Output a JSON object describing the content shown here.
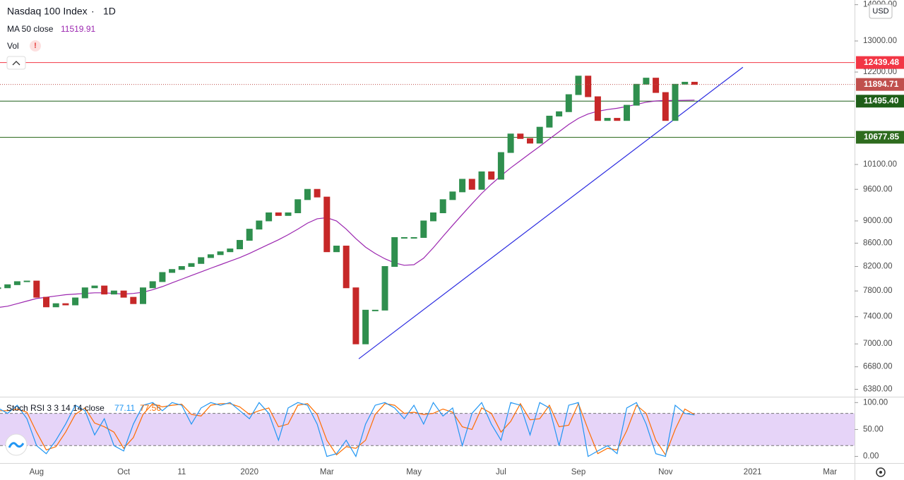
{
  "header": {
    "title": "Nasdaq 100 Index",
    "separator": "·",
    "interval": "1D",
    "currency": "USD",
    "vol_label": "Vol",
    "vol_alert": "!"
  },
  "chart_data": [
    {
      "type": "candlestick",
      "log_scale": true,
      "categories": [
        null,
        null,
        null,
        null,
        "Aug",
        null,
        null,
        null,
        null,
        null,
        null,
        null,
        null,
        "Oct",
        null,
        null,
        null,
        null,
        null,
        "11",
        null,
        null,
        null,
        null,
        null,
        null,
        "2020",
        null,
        null,
        null,
        null,
        null,
        null,
        null,
        "Mar",
        null,
        null,
        null,
        null,
        null,
        null,
        null,
        null,
        "May",
        null,
        null,
        null,
        null,
        null,
        null,
        null,
        null,
        "Jul",
        null,
        null,
        null,
        null,
        null,
        null,
        null,
        "Sep",
        null,
        null,
        null,
        null,
        null,
        null,
        null,
        null,
        "Nov",
        null,
        null,
        null,
        null,
        null,
        null,
        null,
        null,
        "2021",
        null,
        null,
        null,
        null,
        null,
        null,
        null,
        "Mar",
        null
      ],
      "series": [
        {
          "up_color": "#2f8f4e",
          "down_color": "#c62828",
          "values": [
            7850,
            7900,
            7950,
            7960,
            7700,
            7550,
            7600,
            7580,
            7690,
            7850,
            7880,
            7750,
            7800,
            7700,
            7600,
            7850,
            7950,
            8100,
            8150,
            8200,
            8250,
            8350,
            8400,
            8450,
            8500,
            8650,
            8850,
            9000,
            9150,
            9100,
            9150,
            9400,
            9600,
            9450,
            8450,
            8550,
            7850,
            7000,
            7500,
            7500,
            8200,
            8700,
            8700,
            8700,
            9000,
            9150,
            9400,
            9550,
            9800,
            9600,
            9950,
            9800,
            10350,
            10750,
            10650,
            10550,
            10900,
            11150,
            11250,
            11650,
            12100,
            11600,
            11050,
            11100,
            11050,
            11400,
            11900,
            12050,
            11700,
            11050,
            11900,
            11950,
            11894.71,
            null,
            null,
            null,
            null,
            null,
            null,
            null,
            null,
            null,
            null,
            null,
            null,
            null,
            null,
            null
          ]
        },
        {
          "name": "MA 50 close",
          "color": "#9c27b0",
          "values": [
            7540,
            7560,
            7600,
            7640,
            7680,
            7700,
            7720,
            7740,
            7750,
            7760,
            7770,
            7770,
            7760,
            7750,
            7760,
            7780,
            7820,
            7870,
            7930,
            7990,
            8050,
            8110,
            8170,
            8230,
            8290,
            8350,
            8420,
            8500,
            8580,
            8660,
            8750,
            8850,
            8960,
            9040,
            9060,
            9000,
            8850,
            8680,
            8530,
            8420,
            8330,
            8260,
            8220,
            8230,
            8340,
            8520,
            8720,
            8920,
            9120,
            9320,
            9520,
            9700,
            9870,
            10030,
            10180,
            10330,
            10480,
            10640,
            10800,
            10960,
            11100,
            11200,
            11260,
            11300,
            11330,
            11370,
            11420,
            11470,
            11500,
            11510,
            11510,
            11515,
            11519.91,
            null,
            null,
            null,
            null,
            null,
            null,
            null,
            null,
            null,
            null,
            null,
            null,
            null,
            null,
            null
          ]
        }
      ],
      "ylim": [
        6284,
        14135
      ],
      "yticks": [
        {
          "value": 14000,
          "label": "14000.00"
        },
        {
          "value": 13000,
          "label": "13000.00"
        },
        {
          "value": 12200,
          "label": "12200.00"
        },
        {
          "value": 10100,
          "label": "10100.00"
        },
        {
          "value": 9600,
          "label": "9600.00"
        },
        {
          "value": 9000,
          "label": "9000.00"
        },
        {
          "value": 8600,
          "label": "8600.00"
        },
        {
          "value": 8200,
          "label": "8200.00"
        },
        {
          "value": 7800,
          "label": "7800.00"
        },
        {
          "value": 7400,
          "label": "7400.00"
        },
        {
          "value": 7000,
          "label": "7000.00"
        },
        {
          "value": 6680,
          "label": "6680.00"
        },
        {
          "value": 6380,
          "label": "6380.00"
        }
      ],
      "levels": [
        {
          "value": 12439.48,
          "color": "#f23645"
        },
        {
          "value": 11495.4,
          "label": "11495.40",
          "color": "#1e5e18"
        },
        {
          "value": 10677.85,
          "color": "#2e6b1e"
        }
      ],
      "last_price_color": "#c0504d",
      "trend_line": {
        "start": {
          "index": 37.3,
          "value": 6790
        },
        "end": {
          "index": 77,
          "value": 12320
        },
        "color": "#2a2ae0"
      },
      "grid": false
    },
    {
      "type": "line",
      "title": "Stoch RSI 3 3 14 14 close",
      "series": [
        {
          "color": "#2196f3",
          "values": [
            90,
            80,
            95,
            70,
            20,
            5,
            30,
            60,
            95,
            85,
            40,
            70,
            20,
            10,
            60,
            95,
            100,
            85,
            100,
            95,
            60,
            90,
            100,
            95,
            100,
            85,
            70,
            100,
            80,
            30,
            90,
            100,
            95,
            60,
            0,
            5,
            30,
            0,
            60,
            95,
            100,
            90,
            70,
            95,
            60,
            100,
            75,
            90,
            20,
            80,
            100,
            60,
            30,
            100,
            95,
            40,
            100,
            90,
            20,
            95,
            100,
            0,
            10,
            20,
            5,
            90,
            100,
            60,
            5,
            0,
            95,
            80,
            77.11,
            null,
            null,
            null,
            null,
            null,
            null,
            null,
            null,
            null,
            null,
            null,
            null,
            null,
            null,
            null
          ]
        },
        {
          "color": "#ff6d00",
          "values": [
            85,
            85,
            88,
            82,
            45,
            12,
            18,
            45,
            78,
            90,
            62,
            55,
            45,
            15,
            35,
            78,
            98,
            92,
            95,
            97,
            78,
            75,
            95,
            98,
            98,
            92,
            78,
            85,
            90,
            55,
            60,
            95,
            98,
            78,
            30,
            3,
            18,
            15,
            30,
            78,
            98,
            95,
            80,
            82,
            78,
            80,
            88,
            82,
            55,
            50,
            90,
            80,
            45,
            65,
            98,
            68,
            70,
            95,
            55,
            58,
            98,
            50,
            5,
            15,
            12,
            48,
            95,
            80,
            30,
            3,
            50,
            88,
            77.56,
            null,
            null,
            null,
            null,
            null,
            null,
            null,
            null,
            null,
            null,
            null,
            null,
            null,
            null,
            null
          ]
        }
      ],
      "ylim": [
        -13.7,
        109.6
      ],
      "yticks": [
        {
          "value": 100,
          "label": "100.00"
        },
        {
          "value": 50,
          "label": "50.00"
        },
        {
          "value": 0,
          "label": "0.00"
        }
      ],
      "bands": [
        20,
        80
      ],
      "band_color": "#e2cdf7",
      "grid": false
    }
  ]
}
